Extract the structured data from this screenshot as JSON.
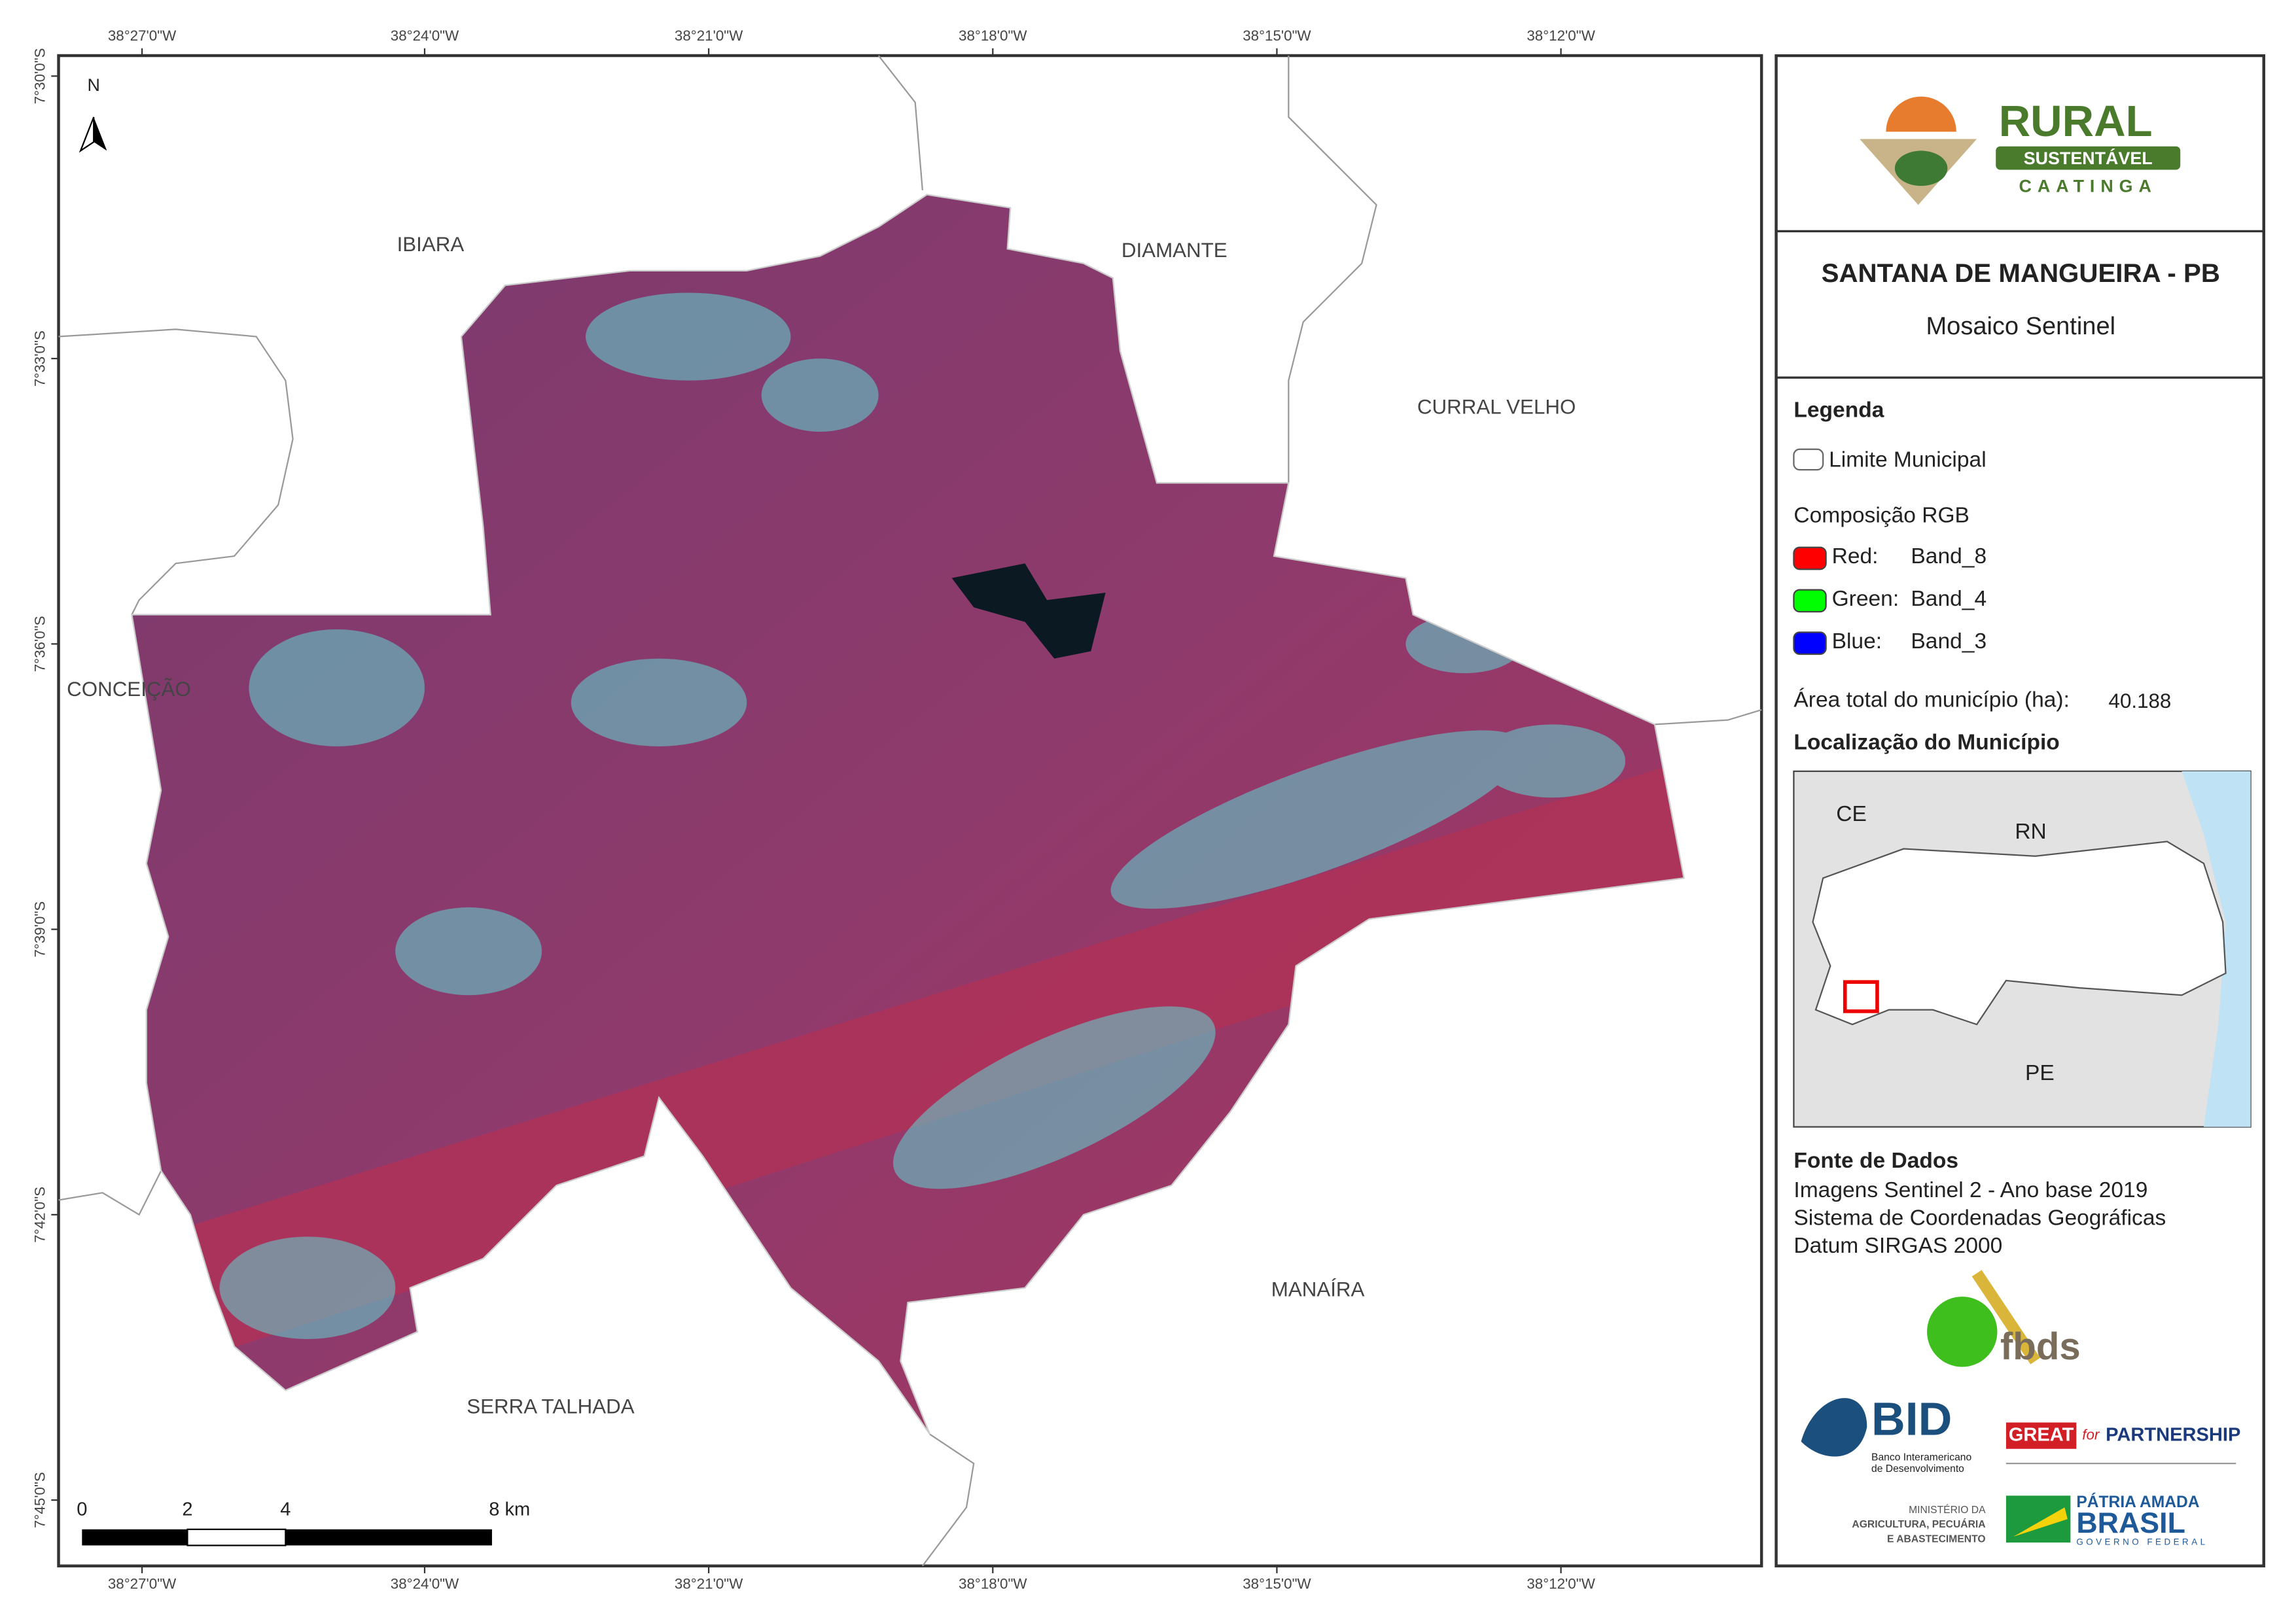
{
  "map": {
    "north_arrow": "N",
    "top_labels": [
      "38°27'0\"W",
      "38°24'0\"W",
      "38°21'0\"W",
      "38°18'0\"W",
      "38°15'0\"W",
      "38°12'0\"W"
    ],
    "bottom_labels": [
      "38°27'0\"W",
      "38°24'0\"W",
      "38°21'0\"W",
      "38°18'0\"W",
      "38°15'0\"W",
      "38°12'0\"W"
    ],
    "left_labels": [
      "7°30'0\"S",
      "7°33'0\"S",
      "7°36'0\"S",
      "7°39'0\"S",
      "7°42'0\"S",
      "7°45'0\"S"
    ],
    "place_labels": [
      "IBIARA",
      "DIAMANTE",
      "CURRAL VELHO",
      "CONCEIÇÃO",
      "MANAÍRA",
      "SERRA TALHADA"
    ],
    "scale_labels": [
      "0",
      "2",
      "4",
      "8 km"
    ]
  },
  "panel": {
    "logo": {
      "line1": "RURAL",
      "line2": "SUSTENTÁVEL",
      "line3": "CAATINGA"
    },
    "title": "SANTANA DE MANGUEIRA - PB",
    "subtitle": "Mosaico Sentinel",
    "legend": {
      "heading": "Legenda",
      "boundary": "Limite Municipal",
      "rgb_heading": "Composição RGB",
      "bands": [
        {
          "channel": "Red:",
          "band": "Band_8",
          "color": "#ff0000"
        },
        {
          "channel": "Green:",
          "band": "Band_4",
          "color": "#00ff00"
        },
        {
          "channel": "Blue:",
          "band": "Band_3",
          "color": "#0000ff"
        }
      ],
      "area_label": "Área total do município (ha):",
      "area_value": "40.188"
    },
    "location": {
      "heading": "Localização do Município",
      "labels": [
        "CE",
        "RN",
        "PE"
      ]
    },
    "sources": {
      "heading": "Fonte de Dados",
      "lines": [
        "Imagens Sentinel 2 - Ano base 2019",
        "Sistema de Coordenadas Geográficas",
        "Datum SIRGAS 2000"
      ]
    },
    "logos": {
      "fbds": "fbds",
      "bid": "BID",
      "bid_sub": [
        "Banco Interamericano",
        "de Desenvolvimento"
      ],
      "great": "GREAT",
      "great_for": "for",
      "partnership": "PARTNERSHIP",
      "ministry": [
        "MINISTÉRIO DA",
        "AGRICULTURA, PECUÁRIA",
        "E ABASTECIMENTO"
      ],
      "brasil_top": "PÁTRIA AMADA",
      "brasil": "BRASIL",
      "brasil_sub": "GOVERNO FEDERAL"
    }
  }
}
